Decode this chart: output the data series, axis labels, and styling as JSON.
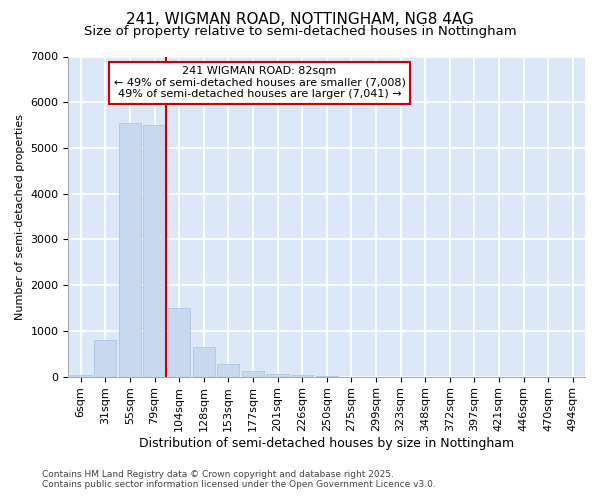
{
  "title": "241, WIGMAN ROAD, NOTTINGHAM, NG8 4AG",
  "subtitle": "Size of property relative to semi-detached houses in Nottingham",
  "xlabel": "Distribution of semi-detached houses by size in Nottingham",
  "ylabel": "Number of semi-detached properties",
  "categories": [
    "6sqm",
    "31sqm",
    "55sqm",
    "79sqm",
    "104sqm",
    "128sqm",
    "153sqm",
    "177sqm",
    "201sqm",
    "226sqm",
    "250sqm",
    "275sqm",
    "299sqm",
    "323sqm",
    "348sqm",
    "372sqm",
    "397sqm",
    "421sqm",
    "446sqm",
    "470sqm",
    "494sqm"
  ],
  "values": [
    30,
    800,
    5550,
    5500,
    1500,
    650,
    280,
    130,
    50,
    30,
    5,
    0,
    0,
    0,
    0,
    0,
    0,
    0,
    0,
    0,
    0
  ],
  "bar_color": "#c8d8ee",
  "bar_edge_color": "#a8c0e0",
  "property_bin_index": 3,
  "property_label": "241 WIGMAN ROAD: 82sqm",
  "annotation_line1": "← 49% of semi-detached houses are smaller (7,008)",
  "annotation_line2": "49% of semi-detached houses are larger (7,041) →",
  "vline_color": "#cc0000",
  "annotation_box_facecolor": "#ffffff",
  "annotation_box_edgecolor": "#cc0000",
  "ylim": [
    0,
    7000
  ],
  "background_color": "#dce8f8",
  "grid_color": "#ffffff",
  "footer_line1": "Contains HM Land Registry data © Crown copyright and database right 2025.",
  "footer_line2": "Contains public sector information licensed under the Open Government Licence v3.0.",
  "title_fontsize": 11,
  "subtitle_fontsize": 9.5,
  "xlabel_fontsize": 9,
  "ylabel_fontsize": 8,
  "tick_fontsize": 8,
  "annotation_fontsize": 8,
  "footer_fontsize": 6.5
}
